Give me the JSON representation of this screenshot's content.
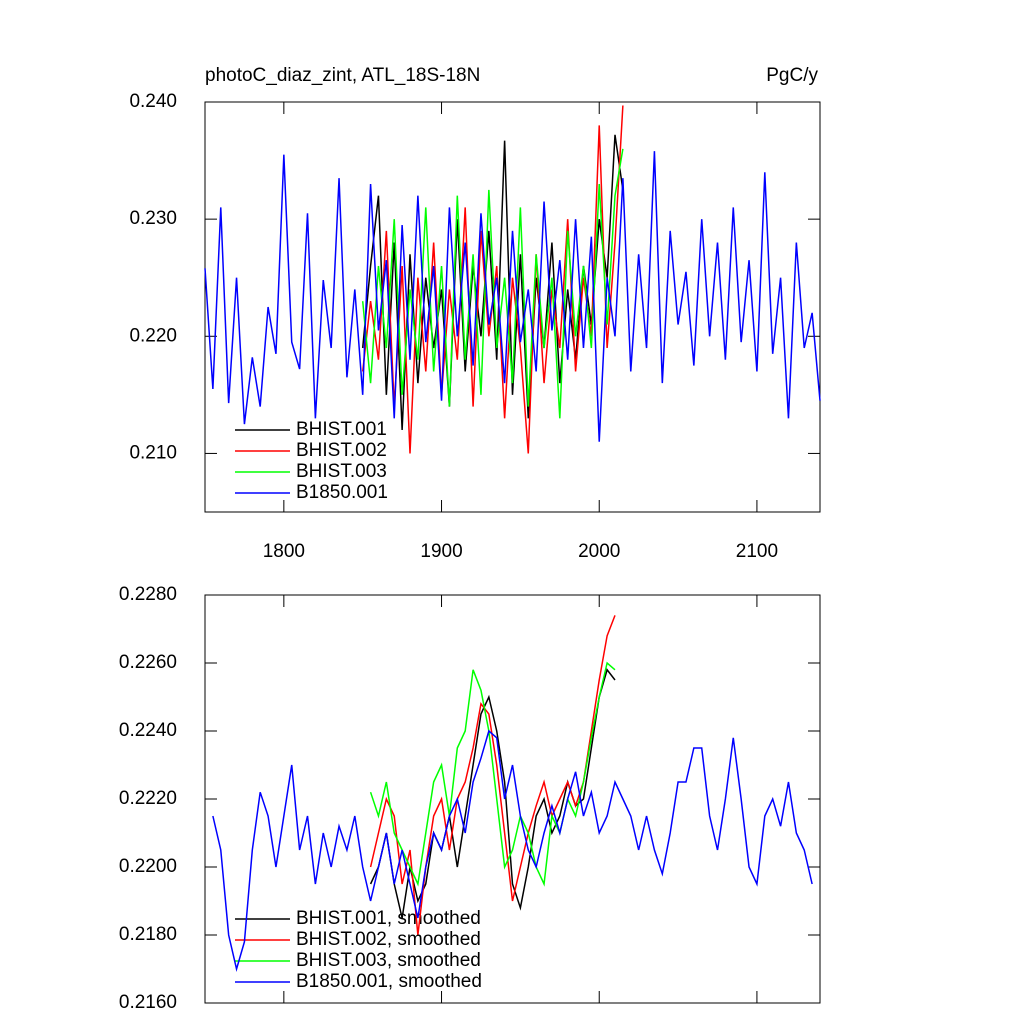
{
  "chart_data": [
    {
      "type": "line",
      "title": "photoC_diaz_zint, ATL_18S-18N",
      "units": "PgC/y",
      "xlim": [
        1750,
        2140
      ],
      "xticks": [
        1800,
        1900,
        2000,
        2100
      ],
      "ylim": [
        0.205,
        0.24
      ],
      "yticks": [
        {
          "value": 0.21,
          "label": "0.210"
        },
        {
          "value": 0.22,
          "label": "0.220"
        },
        {
          "value": 0.23,
          "label": "0.230"
        },
        {
          "value": 0.24,
          "label": "0.240"
        }
      ],
      "series": [
        {
          "name": "BHIST.001",
          "color": "#000000",
          "x": [
            1850,
            1855,
            1860,
            1865,
            1870,
            1875,
            1880,
            1885,
            1890,
            1895,
            1900,
            1905,
            1910,
            1915,
            1920,
            1925,
            1930,
            1935,
            1940,
            1945,
            1950,
            1955,
            1960,
            1965,
            1970,
            1975,
            1980,
            1985,
            1990,
            1995,
            2000,
            2005,
            2010,
            2015
          ],
          "values": [
            0.219,
            0.226,
            0.232,
            0.215,
            0.228,
            0.212,
            0.227,
            0.216,
            0.225,
            0.219,
            0.224,
            0.214,
            0.23,
            0.217,
            0.226,
            0.22,
            0.229,
            0.218,
            0.2367,
            0.215,
            0.227,
            0.213,
            0.225,
            0.219,
            0.228,
            0.216,
            0.224,
            0.218,
            0.226,
            0.221,
            0.23,
            0.225,
            0.2372,
            0.2325
          ]
        },
        {
          "name": "BHIST.002",
          "color": "#ff0000",
          "x": [
            1850,
            1855,
            1860,
            1865,
            1870,
            1875,
            1880,
            1885,
            1890,
            1895,
            1900,
            1905,
            1910,
            1915,
            1920,
            1925,
            1930,
            1935,
            1940,
            1945,
            1950,
            1955,
            1960,
            1965,
            1970,
            1975,
            1980,
            1985,
            1990,
            1995,
            2000,
            2005,
            2010,
            2015
          ],
          "values": [
            0.217,
            0.223,
            0.218,
            0.229,
            0.214,
            0.226,
            0.21,
            0.225,
            0.217,
            0.228,
            0.215,
            0.224,
            0.218,
            0.231,
            0.214,
            0.229,
            0.22,
            0.226,
            0.213,
            0.225,
            0.219,
            0.21,
            0.227,
            0.216,
            0.224,
            0.219,
            0.23,
            0.217,
            0.225,
            0.22,
            0.238,
            0.219,
            0.228,
            0.2397
          ]
        },
        {
          "name": "BHIST.003",
          "color": "#00ff00",
          "x": [
            1850,
            1855,
            1860,
            1865,
            1870,
            1875,
            1880,
            1885,
            1890,
            1895,
            1900,
            1905,
            1910,
            1915,
            1920,
            1925,
            1930,
            1935,
            1940,
            1945,
            1950,
            1955,
            1960,
            1965,
            1970,
            1975,
            1980,
            1985,
            1990,
            1995,
            2000,
            2005,
            2010,
            2015
          ],
          "values": [
            0.223,
            0.216,
            0.226,
            0.219,
            0.23,
            0.215,
            0.224,
            0.218,
            0.231,
            0.217,
            0.226,
            0.214,
            0.232,
            0.218,
            0.227,
            0.215,
            0.2325,
            0.219,
            0.225,
            0.216,
            0.231,
            0.214,
            0.227,
            0.219,
            0.225,
            0.213,
            0.229,
            0.22,
            0.226,
            0.219,
            0.233,
            0.221,
            0.232,
            0.236
          ]
        },
        {
          "name": "B1850.001",
          "color": "#0000ff",
          "x": [
            1750,
            1755,
            1760,
            1765,
            1770,
            1775,
            1780,
            1785,
            1790,
            1795,
            1800,
            1805,
            1810,
            1815,
            1820,
            1825,
            1830,
            1835,
            1840,
            1845,
            1850,
            1855,
            1860,
            1865,
            1870,
            1875,
            1880,
            1885,
            1890,
            1895,
            1900,
            1905,
            1910,
            1915,
            1920,
            1925,
            1930,
            1935,
            1940,
            1945,
            1950,
            1955,
            1960,
            1965,
            1970,
            1975,
            1980,
            1985,
            1990,
            1995,
            2000,
            2005,
            2010,
            2015,
            2020,
            2025,
            2030,
            2035,
            2040,
            2045,
            2050,
            2055,
            2060,
            2065,
            2070,
            2075,
            2080,
            2085,
            2090,
            2095,
            2100,
            2105,
            2110,
            2115,
            2120,
            2125,
            2130,
            2135,
            2140
          ],
          "values": [
            0.2258,
            0.2155,
            0.231,
            0.2143,
            0.225,
            0.2125,
            0.2182,
            0.214,
            0.2225,
            0.2185,
            0.2355,
            0.2195,
            0.2172,
            0.2305,
            0.213,
            0.2248,
            0.219,
            0.2335,
            0.2165,
            0.224,
            0.215,
            0.233,
            0.2205,
            0.2265,
            0.213,
            0.2295,
            0.218,
            0.232,
            0.2195,
            0.226,
            0.2145,
            0.231,
            0.22,
            0.228,
            0.2175,
            0.2305,
            0.221,
            0.225,
            0.216,
            0.229,
            0.2195,
            0.224,
            0.217,
            0.2315,
            0.2205,
            0.2265,
            0.218,
            0.23,
            0.219,
            0.2285,
            0.211,
            0.225,
            0.22,
            0.2335,
            0.217,
            0.227,
            0.219,
            0.2358,
            0.216,
            0.229,
            0.221,
            0.2255,
            0.2175,
            0.23,
            0.22,
            0.228,
            0.218,
            0.231,
            0.2195,
            0.2265,
            0.217,
            0.234,
            0.2185,
            0.225,
            0.213,
            0.228,
            0.219,
            0.222,
            0.2145
          ]
        }
      ]
    },
    {
      "type": "line",
      "xlim": [
        1750,
        2140
      ],
      "xticks": [
        1800,
        1900,
        2000,
        2100
      ],
      "ylim": [
        0.216,
        0.228
      ],
      "yticks": [
        {
          "value": 0.216,
          "label": "0.2160"
        },
        {
          "value": 0.218,
          "label": "0.2180"
        },
        {
          "value": 0.22,
          "label": "0.2200"
        },
        {
          "value": 0.222,
          "label": "0.2220"
        },
        {
          "value": 0.224,
          "label": "0.2240"
        },
        {
          "value": 0.226,
          "label": "0.2260"
        },
        {
          "value": 0.228,
          "label": "0.2280"
        }
      ],
      "series": [
        {
          "name": "BHIST.001, smoothed",
          "color": "#000000",
          "x": [
            1855,
            1860,
            1865,
            1870,
            1875,
            1880,
            1885,
            1890,
            1895,
            1900,
            1905,
            1910,
            1915,
            1920,
            1925,
            1930,
            1935,
            1940,
            1945,
            1950,
            1955,
            1960,
            1965,
            1970,
            1975,
            1980,
            1985,
            1990,
            1995,
            2000,
            2005,
            2010
          ],
          "values": [
            0.2195,
            0.22,
            0.221,
            0.2195,
            0.2185,
            0.22,
            0.219,
            0.2195,
            0.221,
            0.2205,
            0.2215,
            0.22,
            0.2215,
            0.223,
            0.2245,
            0.225,
            0.224,
            0.2225,
            0.2195,
            0.2188,
            0.22,
            0.2215,
            0.222,
            0.221,
            0.2215,
            0.2225,
            0.2218,
            0.222,
            0.2235,
            0.225,
            0.2258,
            0.2255
          ]
        },
        {
          "name": "BHIST.002, smoothed",
          "color": "#ff0000",
          "x": [
            1855,
            1860,
            1865,
            1870,
            1875,
            1880,
            1885,
            1890,
            1895,
            1900,
            1905,
            1910,
            1915,
            1920,
            1925,
            1930,
            1935,
            1940,
            1945,
            1950,
            1955,
            1960,
            1965,
            1970,
            1975,
            1980,
            1985,
            1990,
            1995,
            2000,
            2005,
            2010
          ],
          "values": [
            0.22,
            0.221,
            0.222,
            0.2215,
            0.2195,
            0.2205,
            0.218,
            0.22,
            0.2215,
            0.222,
            0.2205,
            0.222,
            0.2225,
            0.2235,
            0.2248,
            0.2245,
            0.223,
            0.221,
            0.219,
            0.22,
            0.221,
            0.2218,
            0.2225,
            0.2215,
            0.222,
            0.2225,
            0.2218,
            0.2225,
            0.224,
            0.2255,
            0.2268,
            0.2274
          ]
        },
        {
          "name": "BHIST.003, smoothed",
          "color": "#00ff00",
          "x": [
            1855,
            1860,
            1865,
            1870,
            1875,
            1880,
            1885,
            1890,
            1895,
            1900,
            1905,
            1910,
            1915,
            1920,
            1925,
            1930,
            1935,
            1940,
            1945,
            1950,
            1955,
            1960,
            1965,
            1970,
            1975,
            1980,
            1985,
            1990,
            1995,
            2000,
            2005,
            2010
          ],
          "values": [
            0.2222,
            0.2215,
            0.2225,
            0.221,
            0.2205,
            0.22,
            0.2195,
            0.221,
            0.2225,
            0.223,
            0.2215,
            0.2235,
            0.224,
            0.2258,
            0.2252,
            0.224,
            0.222,
            0.22,
            0.2205,
            0.2215,
            0.221,
            0.22,
            0.2195,
            0.2215,
            0.221,
            0.222,
            0.2215,
            0.2225,
            0.2238,
            0.225,
            0.226,
            0.2258
          ]
        },
        {
          "name": "B1850.001, smoothed",
          "color": "#0000ff",
          "x": [
            1755,
            1760,
            1765,
            1770,
            1775,
            1780,
            1785,
            1790,
            1795,
            1800,
            1805,
            1810,
            1815,
            1820,
            1825,
            1830,
            1835,
            1840,
            1845,
            1850,
            1855,
            1860,
            1865,
            1870,
            1875,
            1880,
            1885,
            1890,
            1895,
            1900,
            1905,
            1910,
            1915,
            1920,
            1925,
            1930,
            1935,
            1940,
            1945,
            1950,
            1955,
            1960,
            1965,
            1970,
            1975,
            1980,
            1985,
            1990,
            1995,
            2000,
            2005,
            2010,
            2015,
            2020,
            2025,
            2030,
            2035,
            2040,
            2045,
            2050,
            2055,
            2060,
            2065,
            2070,
            2075,
            2080,
            2085,
            2090,
            2095,
            2100,
            2105,
            2110,
            2115,
            2120,
            2125,
            2130,
            2135
          ],
          "values": [
            0.2215,
            0.2205,
            0.218,
            0.217,
            0.2178,
            0.2205,
            0.2222,
            0.2215,
            0.22,
            0.2215,
            0.223,
            0.2205,
            0.2215,
            0.2195,
            0.221,
            0.22,
            0.2212,
            0.2205,
            0.2215,
            0.22,
            0.219,
            0.22,
            0.221,
            0.2195,
            0.2205,
            0.2195,
            0.2185,
            0.22,
            0.221,
            0.2205,
            0.2215,
            0.222,
            0.221,
            0.2225,
            0.2232,
            0.224,
            0.2238,
            0.222,
            0.223,
            0.2215,
            0.2205,
            0.22,
            0.221,
            0.2218,
            0.221,
            0.222,
            0.2228,
            0.2215,
            0.2222,
            0.221,
            0.2215,
            0.2225,
            0.222,
            0.2215,
            0.2205,
            0.2215,
            0.2205,
            0.2198,
            0.221,
            0.2225,
            0.2225,
            0.2235,
            0.2235,
            0.2215,
            0.2205,
            0.222,
            0.2238,
            0.222,
            0.22,
            0.2195,
            0.2215,
            0.222,
            0.2212,
            0.2225,
            0.221,
            0.2205,
            0.2195
          ]
        }
      ]
    }
  ]
}
